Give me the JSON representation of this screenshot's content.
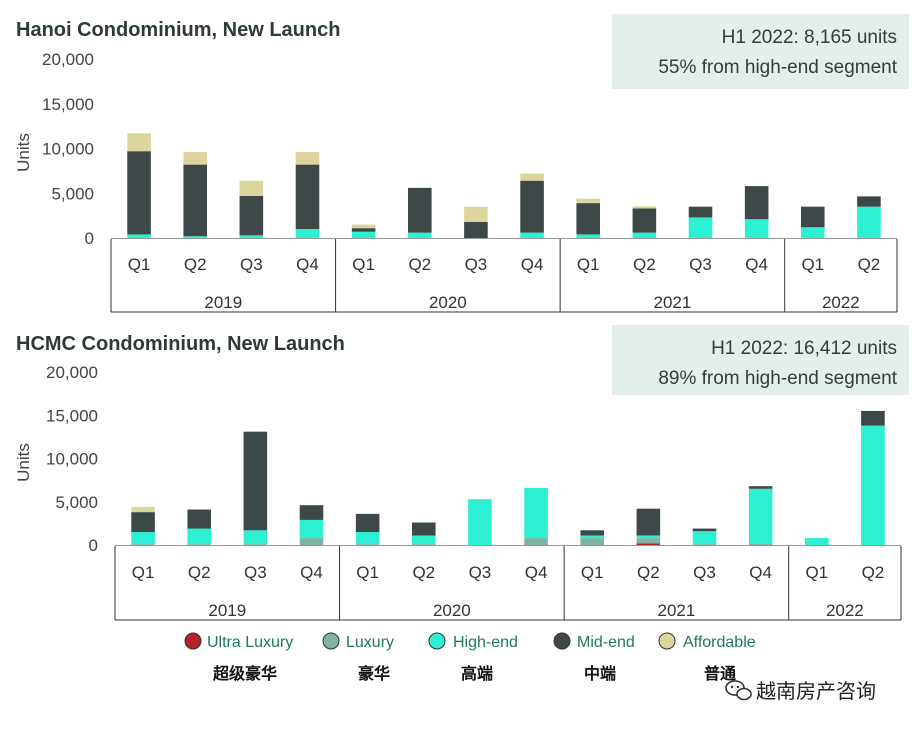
{
  "colors": {
    "Ultra Luxury": "#b0252a",
    "Luxury": "#7fb3a4",
    "High-end": "#2df0d2",
    "Mid-end": "#3e4848",
    "Affordable": "#dcd69e"
  },
  "chart_data": [
    {
      "type": "bar",
      "stacked": true,
      "title": "Hanoi Condominium, New Launch",
      "ylabel": "Units",
      "ylim": [
        0,
        20000
      ],
      "yticks": [
        "20,000",
        "15,000",
        "10,000",
        "5,000",
        "0"
      ],
      "annotation": [
        "H1 2022: 8,165 units",
        "55% from high-end segment"
      ],
      "categories": [
        "Q1",
        "Q2",
        "Q3",
        "Q4",
        "Q1",
        "Q2",
        "Q3",
        "Q4",
        "Q1",
        "Q2",
        "Q3",
        "Q4",
        "Q1",
        "Q2"
      ],
      "year_groups": [
        {
          "label": "2019",
          "count": 4
        },
        {
          "label": "2020",
          "count": 4
        },
        {
          "label": "2021",
          "count": 4
        },
        {
          "label": "2022",
          "count": 2
        }
      ],
      "series": [
        {
          "name": "Ultra Luxury",
          "values": [
            0,
            0,
            0,
            0,
            0,
            0,
            0,
            0,
            0,
            0,
            0,
            0,
            0,
            0
          ]
        },
        {
          "name": "Luxury",
          "values": [
            0,
            0,
            0,
            0,
            0,
            0,
            0,
            0,
            0,
            0,
            0,
            0,
            0,
            0
          ]
        },
        {
          "name": "High-end",
          "values": [
            400,
            200,
            300,
            1000,
            700,
            600,
            0,
            600,
            400,
            600,
            2300,
            2100,
            1200,
            3500
          ]
        },
        {
          "name": "Mid-end",
          "values": [
            9300,
            8000,
            4400,
            7200,
            400,
            5000,
            1800,
            5800,
            3500,
            2700,
            1200,
            3700,
            2300,
            1150
          ]
        },
        {
          "name": "Affordable",
          "values": [
            2000,
            1400,
            1700,
            1400,
            400,
            0,
            1700,
            800,
            500,
            250,
            0,
            0,
            0,
            0
          ]
        }
      ]
    },
    {
      "type": "bar",
      "stacked": true,
      "title": "HCMC Condominium, New Launch",
      "ylabel": "Units",
      "ylim": [
        0,
        20000
      ],
      "yticks": [
        "20,000",
        "15,000",
        "10,000",
        "5,000",
        "0"
      ],
      "annotation": [
        "H1 2022: 16,412 units",
        "89% from high-end segment"
      ],
      "categories": [
        "Q1",
        "Q2",
        "Q3",
        "Q4",
        "Q1",
        "Q2",
        "Q3",
        "Q4",
        "Q1",
        "Q2",
        "Q3",
        "Q4",
        "Q1",
        "Q2"
      ],
      "year_groups": [
        {
          "label": "2019",
          "count": 4
        },
        {
          "label": "2020",
          "count": 4
        },
        {
          "label": "2021",
          "count": 4
        },
        {
          "label": "2022",
          "count": 2
        }
      ],
      "series": [
        {
          "name": "Ultra Luxury",
          "values": [
            0,
            0,
            0,
            0,
            0,
            0,
            0,
            0,
            0,
            200,
            0,
            0,
            0,
            0
          ]
        },
        {
          "name": "Luxury",
          "values": [
            100,
            100,
            100,
            800,
            100,
            100,
            0,
            800,
            800,
            600,
            100,
            200,
            0,
            0
          ]
        },
        {
          "name": "High-end",
          "values": [
            1400,
            1800,
            1600,
            2100,
            1400,
            1000,
            5300,
            5800,
            300,
            300,
            1500,
            6300,
            800,
            13800
          ]
        },
        {
          "name": "Mid-end",
          "values": [
            2300,
            2200,
            11400,
            1700,
            2100,
            1500,
            0,
            0,
            600,
            3100,
            300,
            300,
            0,
            1700
          ]
        },
        {
          "name": "Affordable",
          "values": [
            600,
            0,
            0,
            0,
            0,
            0,
            0,
            0,
            0,
            0,
            0,
            0,
            0,
            0
          ]
        }
      ]
    }
  ],
  "legend": [
    {
      "name": "Ultra Luxury",
      "cn": "超级豪华"
    },
    {
      "name": "Luxury",
      "cn": "豪华"
    },
    {
      "name": "High-end",
      "cn": "高端"
    },
    {
      "name": "Mid-end",
      "cn": "中端"
    },
    {
      "name": "Affordable",
      "cn": "普通"
    }
  ],
  "watermark": {
    "icon": "wechat-icon",
    "text": "越南房产咨询"
  }
}
